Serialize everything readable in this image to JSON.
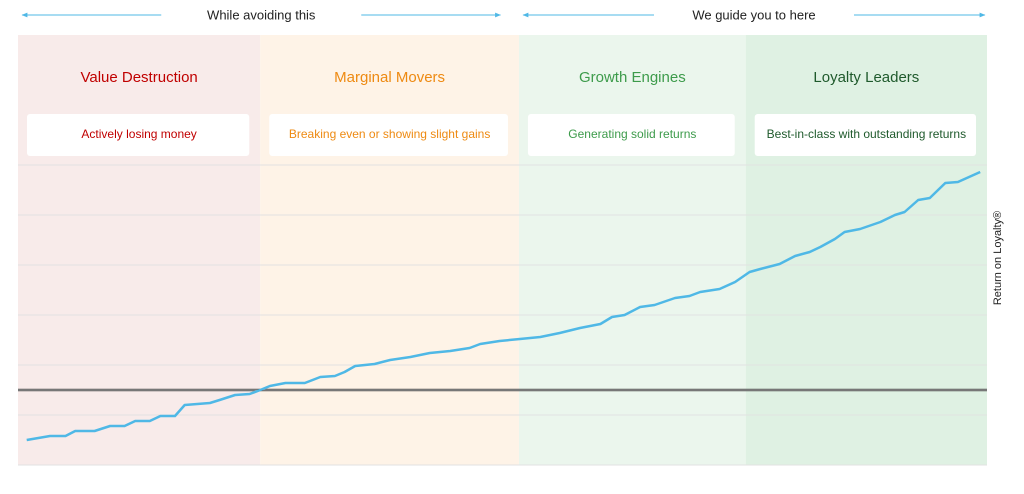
{
  "chart_data": {
    "type": "line",
    "header": [
      {
        "text": "While avoiding this",
        "from": 0,
        "to": 50
      },
      {
        "text": "We guide you to here",
        "from": 51.7,
        "to": 100
      }
    ],
    "y_label": "Return on Loyalty®",
    "zones": [
      {
        "title": "Value Destruction",
        "description": "Actively losing money",
        "from": 0,
        "to": 25,
        "color": "#c00000",
        "background": "#f8ebea"
      },
      {
        "title": "Marginal Movers",
        "description": "Breaking even or showing slight gains",
        "from": 25,
        "to": 51.7,
        "color": "#ee8a12",
        "background": "#fef3e7"
      },
      {
        "title": "Growth Engines",
        "description": "Generating solid returns",
        "from": 51.7,
        "to": 75.1,
        "color": "#3d9b4b",
        "background": "#ebf6ed"
      },
      {
        "title": "Loyalty Leaders",
        "description": "Best-in-class with outstanding returns",
        "from": 75.1,
        "to": 100,
        "color": "#1f5a2c",
        "background": "#dff1e3"
      }
    ],
    "x": [
      0.9,
      3.3,
      4.9,
      5.9,
      7.9,
      9.5,
      11.0,
      12.1,
      13.6,
      14.7,
      16.2,
      17.2,
      19.8,
      20.8,
      22.4,
      23.9,
      25.0,
      26.0,
      27.6,
      29.6,
      31.2,
      32.7,
      33.7,
      34.8,
      36.8,
      38.4,
      40.5,
      42.5,
      44.6,
      46.6,
      47.7,
      49.7,
      51.8,
      53.9,
      55.9,
      58.0,
      60.1,
      61.3,
      62.6,
      64.2,
      65.7,
      67.8,
      69.3,
      70.4,
      72.4,
      74.0,
      75.5,
      76.6,
      78.6,
      80.2,
      81.7,
      82.8,
      84.3,
      85.3,
      86.9,
      89.0,
      90.5,
      91.5,
      92.9,
      94.1,
      95.7,
      97.0,
      99.3
    ],
    "series": [
      {
        "color": "#4fb8e6",
        "values": [
          -1.0,
          -0.92,
          -0.92,
          -0.82,
          -0.82,
          -0.72,
          -0.72,
          -0.62,
          -0.62,
          -0.52,
          -0.52,
          -0.3,
          -0.26,
          -0.2,
          -0.1,
          -0.08,
          0,
          0.08,
          0.14,
          0.14,
          0.26,
          0.28,
          0.36,
          0.48,
          0.52,
          0.6,
          0.66,
          0.74,
          0.78,
          0.84,
          0.92,
          0.98,
          1.02,
          1.06,
          1.14,
          1.24,
          1.32,
          1.46,
          1.5,
          1.66,
          1.7,
          1.84,
          1.88,
          1.96,
          2.02,
          2.16,
          2.36,
          2.42,
          2.52,
          2.68,
          2.76,
          2.86,
          3.02,
          3.16,
          3.22,
          3.36,
          3.5,
          3.56,
          3.8,
          3.84,
          4.14,
          4.16,
          4.36
        ]
      }
    ],
    "xlim": [
      0,
      100
    ],
    "ylim": [
      -1.5,
      7.1
    ],
    "yticks": [
      -1.5,
      -0.5,
      0.5,
      1.5,
      2.5,
      3.5,
      4.5
    ],
    "grid": true,
    "reference_line": 0,
    "accent_color": "#4fb8e6"
  }
}
